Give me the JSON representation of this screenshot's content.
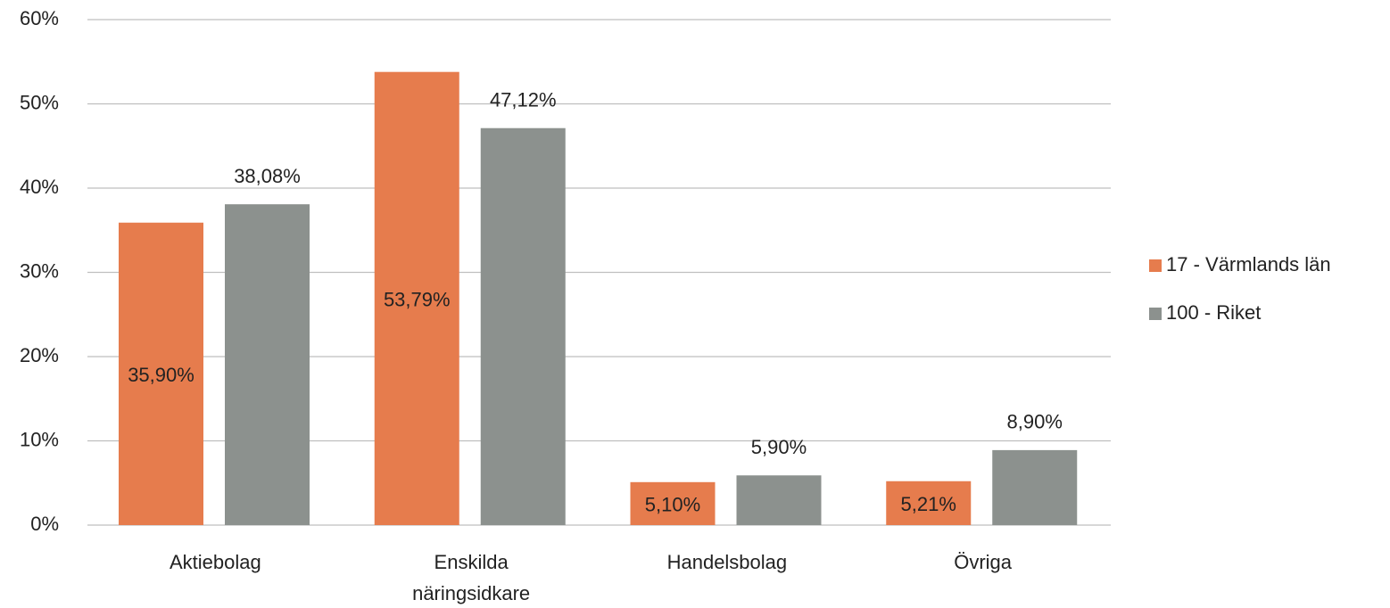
{
  "chart_data": {
    "type": "bar",
    "categories": [
      "Aktiebolag",
      "Enskilda näringsidkare",
      "Handelsbolag",
      "Övriga"
    ],
    "series": [
      {
        "name": "17 - Värmlands län",
        "color": "#e67c4d",
        "values": [
          35.9,
          53.79,
          5.1,
          5.21
        ],
        "value_labels": [
          "35,90%",
          "53,79%",
          "5,10%",
          "5,21%"
        ]
      },
      {
        "name": "100 - Riket",
        "color": "#8c918e",
        "values": [
          38.08,
          47.12,
          5.9,
          8.9
        ],
        "value_labels": [
          "38,08%",
          "47,12%",
          "5,90%",
          "8,90%"
        ]
      }
    ],
    "ylim": [
      0,
      60
    ],
    "yticks": [
      {
        "value": 0,
        "label": "0%"
      },
      {
        "value": 10,
        "label": "10%"
      },
      {
        "value": 20,
        "label": "20%"
      },
      {
        "value": 30,
        "label": "30%"
      },
      {
        "value": 40,
        "label": "40%"
      },
      {
        "value": 50,
        "label": "50%"
      },
      {
        "value": 60,
        "label": "60%"
      }
    ],
    "grid": true,
    "legend": "right"
  }
}
